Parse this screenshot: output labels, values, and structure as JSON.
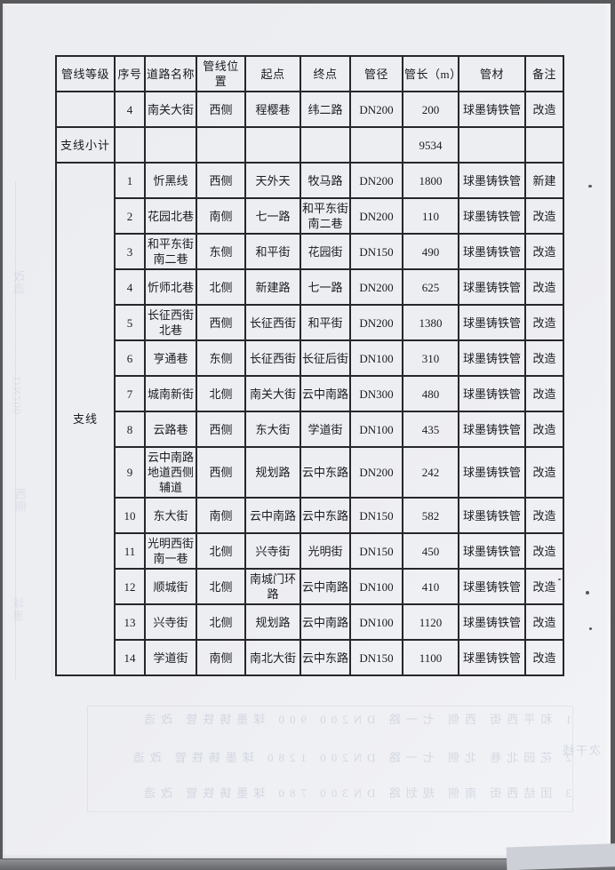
{
  "table": {
    "headers": [
      "管线等级",
      "序号",
      "道路名称",
      "管线位置",
      "起点",
      "终点",
      "管径",
      "管长（m）",
      "管材",
      "备注"
    ],
    "tail_row": {
      "grade": "",
      "no": "4",
      "road": "南关大街",
      "pos": "西侧",
      "start": "程樱巷",
      "end": "纬二路",
      "dia": "DN200",
      "len": "200",
      "mat": "球墨铸铁管",
      "note": "改造"
    },
    "subtotal": {
      "label": "支线小计",
      "len": "9534"
    },
    "group": {
      "label": "支线",
      "rows": [
        {
          "no": "1",
          "road": "忻黑线",
          "pos": "西侧",
          "start": "天外天",
          "end": "牧马路",
          "dia": "DN200",
          "len": "1800",
          "mat": "球墨铸铁管",
          "note": "新建"
        },
        {
          "no": "2",
          "road": "花园北巷",
          "pos": "南侧",
          "start": "七一路",
          "end": "和平东街南二巷",
          "dia": "DN200",
          "len": "110",
          "mat": "球墨铸铁管",
          "note": "改造"
        },
        {
          "no": "3",
          "road": "和平东街南二巷",
          "pos": "东侧",
          "start": "和平街",
          "end": "花园街",
          "dia": "DN150",
          "len": "490",
          "mat": "球墨铸铁管",
          "note": "改造"
        },
        {
          "no": "4",
          "road": "忻师北巷",
          "pos": "北侧",
          "start": "新建路",
          "end": "七一路",
          "dia": "DN200",
          "len": "625",
          "mat": "球墨铸铁管",
          "note": "改造"
        },
        {
          "no": "5",
          "road": "长征西街北巷",
          "pos": "西侧",
          "start": "长征西街",
          "end": "和平街",
          "dia": "DN200",
          "len": "1380",
          "mat": "球墨铸铁管",
          "note": "改造"
        },
        {
          "no": "6",
          "road": "亨通巷",
          "pos": "东侧",
          "start": "长征西街",
          "end": "长征后街",
          "dia": "DN100",
          "len": "310",
          "mat": "球墨铸铁管",
          "note": "改造"
        },
        {
          "no": "7",
          "road": "城南新街",
          "pos": "北侧",
          "start": "南关大街",
          "end": "云中南路",
          "dia": "DN300",
          "len": "480",
          "mat": "球墨铸铁管",
          "note": "改造"
        },
        {
          "no": "8",
          "road": "云路巷",
          "pos": "西侧",
          "start": "东大街",
          "end": "学道街",
          "dia": "DN100",
          "len": "435",
          "mat": "球墨铸铁管",
          "note": "改造"
        },
        {
          "no": "9",
          "road": "云中南路地道西侧辅道",
          "pos": "西侧",
          "start": "规划路",
          "end": "云中东路",
          "dia": "DN200",
          "len": "242",
          "mat": "球墨铸铁管",
          "note": "改造"
        },
        {
          "no": "10",
          "road": "东大街",
          "pos": "南侧",
          "start": "云中南路",
          "end": "云中东路",
          "dia": "DN150",
          "len": "582",
          "mat": "球墨铸铁管",
          "note": "改造"
        },
        {
          "no": "11",
          "road": "光明西街南一巷",
          "pos": "北侧",
          "start": "兴寺街",
          "end": "光明街",
          "dia": "DN150",
          "len": "450",
          "mat": "球墨铸铁管",
          "note": "改造"
        },
        {
          "no": "12",
          "road": "顺城街",
          "pos": "北侧",
          "start": "南城门环路",
          "end": "云中南路",
          "dia": "DN100",
          "len": "410",
          "mat": "球墨铸铁管",
          "note": "改造"
        },
        {
          "no": "13",
          "road": "兴寺街",
          "pos": "北侧",
          "start": "规划路",
          "end": "云中南路",
          "dia": "DN100",
          "len": "1120",
          "mat": "球墨铸铁管",
          "note": "改造"
        },
        {
          "no": "14",
          "road": "学道街",
          "pos": "南侧",
          "start": "南北大街",
          "end": "云中东路",
          "dia": "DN150",
          "len": "1100",
          "mat": "球墨铸铁管",
          "note": "改造"
        }
      ]
    }
  },
  "bleed_through": {
    "row1": "1 和平西街 西侧 七一路 DN200 900 球墨铸铁管 改造",
    "row2": "2 花园北巷 北侧 七一路 DN200 1280 球墨铸铁管 改造",
    "row3": "3 团结西街 南侧 规划路 DN300 780 球墨铸铁管 改造",
    "side_label": "次干线",
    "margin1": "改造",
    "margin2": "DN200",
    "margin3": "西侧",
    "margin4": "球墨"
  }
}
